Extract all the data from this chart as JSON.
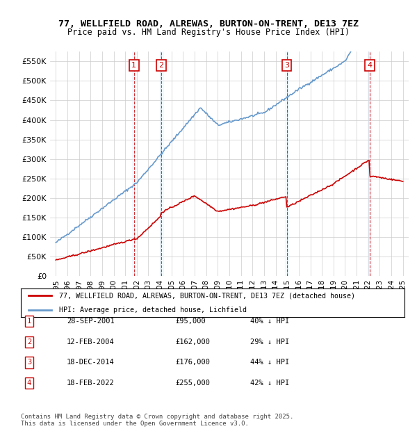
{
  "title": "77, WELLFIELD ROAD, ALREWAS, BURTON-ON-TRENT, DE13 7EZ",
  "subtitle": "Price paid vs. HM Land Registry's House Price Index (HPI)",
  "legend_line1": "77, WELLFIELD ROAD, ALREWAS, BURTON-ON-TRENT, DE13 7EZ (detached house)",
  "legend_line2": "HPI: Average price, detached house, Lichfield",
  "footer1": "Contains HM Land Registry data © Crown copyright and database right 2025.",
  "footer2": "This data is licensed under the Open Government Licence v3.0.",
  "ylim": [
    0,
    575000
  ],
  "yticks": [
    0,
    50000,
    100000,
    150000,
    200000,
    250000,
    300000,
    350000,
    400000,
    450000,
    500000,
    550000
  ],
  "ytick_labels": [
    "£0",
    "£50K",
    "£100K",
    "£150K",
    "£200K",
    "£250K",
    "£300K",
    "£350K",
    "£400K",
    "£450K",
    "£500K",
    "£550K"
  ],
  "xlim_start": 1994.5,
  "xlim_end": 2025.5,
  "transactions": [
    {
      "num": 1,
      "date": "28-SEP-2001",
      "price": 95000,
      "label": "40% ↓ HPI",
      "year": 2001.75
    },
    {
      "num": 2,
      "date": "12-FEB-2004",
      "price": 162000,
      "label": "29% ↓ HPI",
      "year": 2004.12
    },
    {
      "num": 3,
      "date": "18-DEC-2014",
      "price": 176000,
      "label": "44% ↓ HPI",
      "year": 2014.96
    },
    {
      "num": 4,
      "date": "18-FEB-2022",
      "price": 255000,
      "label": "42% ↓ HPI",
      "year": 2022.13
    }
  ],
  "line_red_color": "#cc0000",
  "line_blue_color": "#6699cc",
  "grid_color": "#cccccc",
  "background_color": "#ffffff",
  "marker_box_color": "#cc0000",
  "dashed_line_color": "#cc0000",
  "shade_color": "#ddeeff"
}
